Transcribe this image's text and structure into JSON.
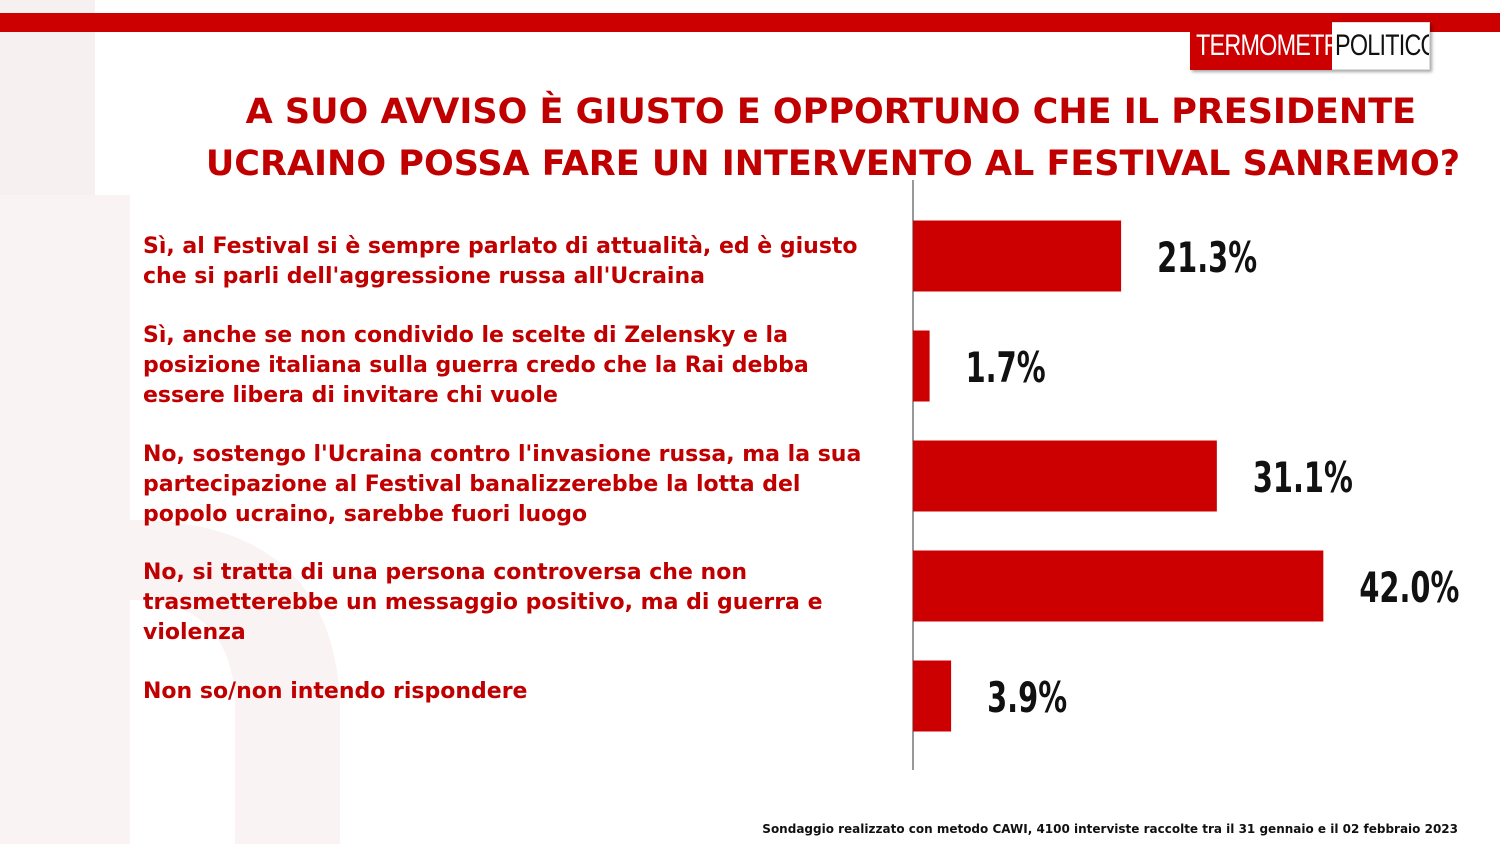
{
  "brand": {
    "part1": "TERMOMETRO",
    "part2": "POLITICO",
    "accent": "#cc0000"
  },
  "title": {
    "line1": "A SUO AVVISO È GIUSTO E OPPORTUNO CHE IL PRESIDENTE",
    "line2": "UCRAINO POSSA FARE UN INTERVENTO AL FESTIVAL SANREMO?"
  },
  "chart_data": {
    "type": "bar",
    "orientation": "horizontal",
    "categories": [
      "Sì, al Festival si è sempre parlato di attualità, ed è giusto\nche si parli dell'aggressione russa all'Ucraina",
      "Sì, anche se non condivido le scelte di Zelensky e la\nposizione italiana sulla guerra credo che la Rai debba\nessere libera di invitare chi vuole",
      "No, sostengo l'Ucraina contro l'invasione russa, ma la sua\npartecipazione al Festival banalizzerebbe la lotta del\npopolo ucraino, sarebbe fuori luogo",
      "No, si tratta di una persona controversa che non\ntrasmetterebbe un messaggio positivo, ma di guerra e\nviolenza",
      "Non so/non intendo rispondere"
    ],
    "values": [
      21.3,
      1.7,
      31.1,
      42.0,
      3.9
    ],
    "value_labels": [
      "21.3%",
      "1.7%",
      "31.1%",
      "42.0%",
      "3.9%"
    ],
    "bar_color": "#cc0000",
    "xlim": [
      0,
      55
    ],
    "legend": "none",
    "grid": false
  },
  "footer": "Sondaggio realizzato con metodo CAWI, 4100 interviste raccolte tra il 31 gennaio e il 02 febbraio 2023"
}
